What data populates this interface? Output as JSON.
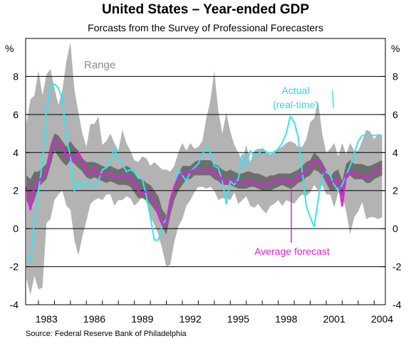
{
  "chart_data": {
    "type": "line",
    "title": "United States – Year-ended GDP",
    "subtitle": "Forcasts from the Survey of Professional Forecasters",
    "source": "Source: Federal Reserve Bank of Philadelphia",
    "y_unit_left": "%",
    "y_unit_right": "%",
    "ylim": [
      -4,
      10
    ],
    "xlim": [
      1982.2,
      2004.7
    ],
    "y_ticks": [
      "-4",
      "-2",
      "0",
      "2",
      "4",
      "6",
      "8"
    ],
    "x_ticks": [
      "1983",
      "1986",
      "1989",
      "1992",
      "1995",
      "1998",
      "2001",
      "2004"
    ],
    "grid": true,
    "annotations": {
      "range": "Range",
      "actual_line1": "Actual",
      "actual_line2": "(real-time)",
      "average": "Average forecast"
    },
    "colors": {
      "range": "#b3b3b3",
      "inner_range": "#6e6e6e",
      "actual": "#33e6f2",
      "average": "#e020e0",
      "range_label": "#8c8c8c"
    },
    "x": [
      1982.25,
      1982.5,
      1982.75,
      1983,
      1983.25,
      1983.5,
      1983.75,
      1984,
      1984.25,
      1984.5,
      1984.75,
      1985,
      1985.25,
      1985.5,
      1985.75,
      1986,
      1986.25,
      1986.5,
      1986.75,
      1987,
      1987.25,
      1987.5,
      1987.75,
      1988,
      1988.25,
      1988.5,
      1988.75,
      1989,
      1989.25,
      1989.5,
      1989.75,
      1990,
      1990.25,
      1990.5,
      1990.75,
      1991,
      1991.25,
      1991.5,
      1991.75,
      1992,
      1992.25,
      1992.5,
      1992.75,
      1993,
      1993.25,
      1993.5,
      1993.75,
      1994,
      1994.25,
      1994.5,
      1994.75,
      1995,
      1995.25,
      1995.5,
      1995.75,
      1996,
      1996.25,
      1996.5,
      1996.75,
      1997,
      1997.25,
      1997.5,
      1997.75,
      1998,
      1998.25,
      1998.5,
      1998.75,
      1999,
      1999.25,
      1999.5,
      1999.75,
      2000,
      2000.25,
      2000.5,
      2000.75,
      2001,
      2001.25,
      2001.5,
      2001.75,
      2002,
      2002.25,
      2002.5,
      2002.75,
      2003,
      2003.25,
      2003.5,
      2003.75,
      2004,
      2004.25,
      2004.5
    ],
    "series": [
      {
        "name": "Range",
        "low": [
          -2.6,
          -3.5,
          -2.5,
          -3.2,
          -3.1,
          0.3,
          0.5,
          1.5,
          1.8,
          2.0,
          1.2,
          1.0,
          -0.6,
          -1.4,
          -0.4,
          0.4,
          1.3,
          1.5,
          1.6,
          1.5,
          1.8,
          1.8,
          1.2,
          1.5,
          1.5,
          1.7,
          1.6,
          1.2,
          1.4,
          1.7,
          1.4,
          0.6,
          0.2,
          -0.3,
          -1.1,
          -2.0,
          -1.9,
          -0.7,
          0.1,
          0.5,
          1.2,
          1.5,
          1.9,
          2.2,
          2.2,
          2.1,
          2.2,
          2.0,
          1.5,
          1.6,
          1.6,
          1.5,
          1.9,
          1.3,
          1.5,
          1.7,
          1.2,
          1.1,
          1.3,
          1.0,
          0.8,
          1.2,
          1.3,
          1.5,
          1.2,
          1.5,
          1.4,
          1.3,
          1.6,
          1.8,
          1.7,
          1.9,
          2.3,
          2.0,
          2.3,
          1.8,
          1.8,
          1.1,
          1.9,
          1.8,
          0.9,
          -0.3,
          0.6,
          0.9,
          1.4,
          0.5,
          0.6,
          0.6,
          0.5,
          0.6
        ],
        "high": [
          5.5,
          6.8,
          7.0,
          8.3,
          7.0,
          8.1,
          8.4,
          7.4,
          6.5,
          7.3,
          8.8,
          9.8,
          7.3,
          6.1,
          5.0,
          4.3,
          5.5,
          5.5,
          5.9,
          4.4,
          4.6,
          5.0,
          4.5,
          4.1,
          5.2,
          4.5,
          4.1,
          3.6,
          3.5,
          3.8,
          3.7,
          3.3,
          3.5,
          3.3,
          3.1,
          3.1,
          3.0,
          3.3,
          4.0,
          4.5,
          4.1,
          4.5,
          4.2,
          4.3,
          4.6,
          5.8,
          6.7,
          8.3,
          6.2,
          5.0,
          6.1,
          5.1,
          4.4,
          4.0,
          3.6,
          4.4,
          3.5,
          4.1,
          4.2,
          4.2,
          4.1,
          3.9,
          4.1,
          4.2,
          4.3,
          4.5,
          4.6,
          4.5,
          4.3,
          4.3,
          4.7,
          5.6,
          5.8,
          6.7,
          5.0,
          4.0,
          4.2,
          4.5,
          3.8,
          4.5,
          3.9,
          4.5,
          4.1,
          4.1,
          4.6,
          5.2,
          5.1,
          4.7,
          5.0,
          4.9
        ]
      },
      {
        "name": "Inner range",
        "low": [
          1.5,
          1.0,
          1.5,
          2.2,
          2.4,
          2.6,
          3.3,
          4.1,
          3.8,
          3.5,
          3.3,
          3.6,
          3.4,
          3.2,
          3.0,
          2.7,
          2.6,
          2.7,
          2.6,
          2.5,
          2.4,
          2.5,
          2.4,
          2.3,
          2.3,
          2.3,
          2.2,
          1.9,
          1.6,
          1.6,
          1.5,
          1.3,
          1.0,
          0.7,
          0.1,
          -0.3,
          0.7,
          1.5,
          2.0,
          2.3,
          2.6,
          2.6,
          2.8,
          2.8,
          2.8,
          2.8,
          2.8,
          2.6,
          2.5,
          2.3,
          2.3,
          2.3,
          2.2,
          2.1,
          2.1,
          2.1,
          2.2,
          2.2,
          2.1,
          2.0,
          2.0,
          2.0,
          2.1,
          2.2,
          2.3,
          2.2,
          2.1,
          2.2,
          2.4,
          2.5,
          2.7,
          2.8,
          3.1,
          3.0,
          2.8,
          2.4,
          2.0,
          2.0,
          2.2,
          1.6,
          2.6,
          2.8,
          2.6,
          2.6,
          2.6,
          2.4,
          2.4,
          2.6,
          2.7,
          2.8
        ],
        "high": [
          2.8,
          2.6,
          3.0,
          3.0,
          3.2,
          3.4,
          4.4,
          5.0,
          4.9,
          4.6,
          4.3,
          4.6,
          4.3,
          4.1,
          3.7,
          3.5,
          3.5,
          3.5,
          3.4,
          3.3,
          3.2,
          3.3,
          3.2,
          3.1,
          3.2,
          3.3,
          3.2,
          2.9,
          2.6,
          2.6,
          2.4,
          2.3,
          2.0,
          1.7,
          1.0,
          0.7,
          1.6,
          2.4,
          2.8,
          3.3,
          3.3,
          3.3,
          3.5,
          3.6,
          3.6,
          3.6,
          3.6,
          3.4,
          3.3,
          3.1,
          3.0,
          3.1,
          3.0,
          2.9,
          2.9,
          3.0,
          3.0,
          2.9,
          2.9,
          2.8,
          2.7,
          2.8,
          2.8,
          2.9,
          2.9,
          2.9,
          2.9,
          3.0,
          3.1,
          3.3,
          3.5,
          3.6,
          4.0,
          3.8,
          3.5,
          3.1,
          2.7,
          3.0,
          3.1,
          2.5,
          3.4,
          3.6,
          3.4,
          3.4,
          3.4,
          3.3,
          3.3,
          3.4,
          3.5,
          3.6
        ]
      },
      {
        "name": "Actual",
        "values": [
          -1.6,
          -1.7,
          0.5,
          2.0,
          3.5,
          6.2,
          7.6,
          7.6,
          7.4,
          6.8,
          4.8,
          3.8,
          2.0,
          2.5,
          2.2,
          2.5,
          2.3,
          2.2,
          2.5,
          3.1,
          3.2,
          3.6,
          4.2,
          3.6,
          3.4,
          3.0,
          3.1,
          3.0,
          2.7,
          2.6,
          1.7,
          0.6,
          -0.6,
          -0.6,
          0.2,
          0.5,
          1.5,
          2.2,
          3.1,
          2.8,
          2.5,
          3.0,
          3.2,
          3.4,
          3.9,
          4.3,
          4.0,
          3.3,
          3.2,
          2.5,
          1.3,
          2.5,
          2.3,
          2.6,
          3.9,
          3.3,
          4.1,
          3.8,
          3.9,
          4.2,
          4.0,
          4.0,
          4.0,
          4.2,
          4.5,
          5.0,
          5.9,
          5.6,
          4.8,
          3.0,
          1.2,
          0.6,
          0.1,
          1.5,
          2.8,
          3.0,
          2.8,
          2.3,
          2.0,
          2.3,
          2.8,
          3.3,
          3.9,
          4.6,
          4.9,
          4.9,
          4.9,
          4.9,
          4.9,
          4.9
        ]
      },
      {
        "name": "Average forecast",
        "values": [
          2.2,
          1.0,
          2.2,
          2.5,
          2.7,
          3.0,
          4.0,
          4.6,
          4.5,
          4.3,
          3.8,
          3.9,
          3.5,
          4.0,
          3.5,
          3.0,
          2.9,
          3.2,
          2.9,
          2.8,
          2.8,
          2.9,
          2.7,
          2.7,
          2.8,
          2.8,
          2.6,
          2.4,
          2.0,
          1.8,
          2.0,
          1.8,
          1.4,
          0.7,
          0.2,
          0.3,
          1.5,
          2.2,
          2.7,
          2.9,
          2.8,
          3.0,
          3.1,
          3.1,
          3.0,
          3.0,
          3.1,
          2.9,
          2.8,
          2.6,
          2.4,
          2.6,
          2.5,
          2.4,
          2.4,
          2.4,
          2.5,
          2.4,
          2.3,
          2.3,
          2.4,
          2.4,
          2.5,
          2.6,
          2.5,
          2.6,
          2.4,
          2.6,
          2.7,
          2.9,
          3.0,
          3.3,
          3.6,
          3.5,
          3.2,
          2.7,
          2.4,
          2.5,
          2.6,
          1.2,
          2.8,
          3.0,
          2.9,
          2.8,
          2.8,
          2.7,
          2.8,
          3.0,
          3.1,
          3.2
        ]
      }
    ]
  }
}
